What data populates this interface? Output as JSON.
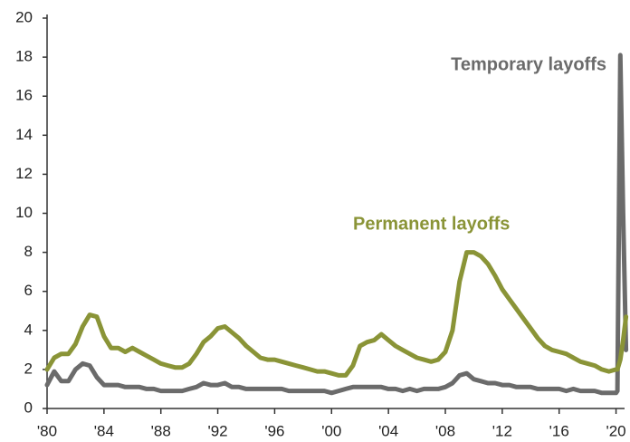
{
  "chart_data": {
    "type": "line",
    "x": [
      1980,
      1980.5,
      1981,
      1981.5,
      1982,
      1982.5,
      1983,
      1983.5,
      1984,
      1984.5,
      1985,
      1985.5,
      1986,
      1986.5,
      1987,
      1987.5,
      1988,
      1988.5,
      1989,
      1989.5,
      1990,
      1990.5,
      1991,
      1991.5,
      1992,
      1992.5,
      1993,
      1993.5,
      1994,
      1994.5,
      1995,
      1995.5,
      1996,
      1996.5,
      1997,
      1997.5,
      1998,
      1998.5,
      1999,
      1999.5,
      2000,
      2000.5,
      2001,
      2001.5,
      2002,
      2002.5,
      2003,
      2003.5,
      2004,
      2004.5,
      2005,
      2005.5,
      2006,
      2006.5,
      2007,
      2007.5,
      2008,
      2008.5,
      2009,
      2009.5,
      2010,
      2010.5,
      2011,
      2011.5,
      2012,
      2012.5,
      2013,
      2013.5,
      2014,
      2014.5,
      2015,
      2015.5,
      2016,
      2016.5,
      2017,
      2017.5,
      2018,
      2018.5,
      2019,
      2019.5,
      2020,
      2020.1,
      2020.3,
      2020.5,
      2020.7
    ],
    "series": [
      {
        "name": "Temporary layoffs",
        "color": "#6b6b6b",
        "values": [
          1.2,
          1.9,
          1.4,
          1.4,
          2.0,
          2.3,
          2.2,
          1.6,
          1.2,
          1.2,
          1.2,
          1.1,
          1.1,
          1.1,
          1.0,
          1.0,
          0.9,
          0.9,
          0.9,
          0.9,
          1.0,
          1.1,
          1.3,
          1.2,
          1.2,
          1.3,
          1.1,
          1.1,
          1.0,
          1.0,
          1.0,
          1.0,
          1.0,
          1.0,
          0.9,
          0.9,
          0.9,
          0.9,
          0.9,
          0.9,
          0.8,
          0.9,
          1.0,
          1.1,
          1.1,
          1.1,
          1.1,
          1.1,
          1.0,
          1.0,
          0.9,
          1.0,
          0.9,
          1.0,
          1.0,
          1.0,
          1.1,
          1.3,
          1.7,
          1.8,
          1.5,
          1.4,
          1.3,
          1.3,
          1.2,
          1.2,
          1.1,
          1.1,
          1.1,
          1.0,
          1.0,
          1.0,
          1.0,
          0.9,
          1.0,
          0.9,
          0.9,
          0.9,
          0.8,
          0.8,
          0.8,
          0.9,
          18.1,
          10.0,
          3.0
        ]
      },
      {
        "name": "Permanent layoffs",
        "color": "#8a9437",
        "values": [
          2.0,
          2.6,
          2.8,
          2.8,
          3.3,
          4.2,
          4.8,
          4.7,
          3.7,
          3.1,
          3.1,
          2.9,
          3.1,
          2.9,
          2.7,
          2.5,
          2.3,
          2.2,
          2.1,
          2.1,
          2.3,
          2.8,
          3.4,
          3.7,
          4.1,
          4.2,
          3.9,
          3.6,
          3.2,
          2.9,
          2.6,
          2.5,
          2.5,
          2.4,
          2.3,
          2.2,
          2.1,
          2.0,
          1.9,
          1.9,
          1.8,
          1.7,
          1.7,
          2.2,
          3.2,
          3.4,
          3.5,
          3.8,
          3.5,
          3.2,
          3.0,
          2.8,
          2.6,
          2.5,
          2.4,
          2.5,
          2.9,
          4.0,
          6.5,
          8.0,
          8.0,
          7.8,
          7.4,
          6.8,
          6.1,
          5.6,
          5.1,
          4.6,
          4.1,
          3.6,
          3.2,
          3.0,
          2.9,
          2.8,
          2.6,
          2.4,
          2.3,
          2.2,
          2.0,
          1.9,
          2.0,
          2.0,
          2.5,
          3.5,
          4.7
        ]
      }
    ],
    "xlim": [
      1980,
      2020.6
    ],
    "xticks": [
      {
        "value": 1980,
        "label": "'80"
      },
      {
        "value": 1984,
        "label": "'84"
      },
      {
        "value": 1988,
        "label": "'88"
      },
      {
        "value": 1992,
        "label": "'92"
      },
      {
        "value": 1996,
        "label": "'96"
      },
      {
        "value": 2000,
        "label": "'00"
      },
      {
        "value": 2004,
        "label": "'04"
      },
      {
        "value": 2008,
        "label": "'08"
      },
      {
        "value": 2012,
        "label": "'12"
      },
      {
        "value": 2016,
        "label": "'16"
      },
      {
        "value": 2020,
        "label": "'20"
      }
    ],
    "ylim": [
      0,
      20
    ],
    "yticks": [
      0,
      2,
      4,
      6,
      8,
      10,
      12,
      14,
      16,
      18,
      20
    ]
  }
}
